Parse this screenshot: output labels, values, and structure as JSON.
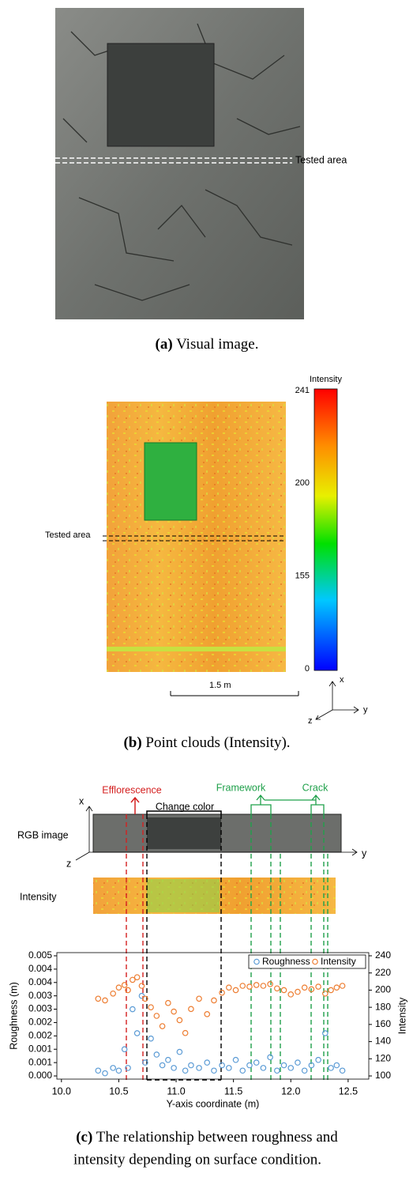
{
  "panel_a": {
    "annotation": "Tested area",
    "caption_label": "(a)",
    "caption": "Visual image."
  },
  "panel_b": {
    "annotation": "Tested area",
    "colorbar_title": "Intensity",
    "colorbar_ticks": [
      241,
      200,
      155,
      0
    ],
    "scale_bar": "1.5 m",
    "axes": [
      "x",
      "y",
      "z"
    ],
    "caption_label": "(b)",
    "caption": "Point clouds (Intensity)."
  },
  "panel_c": {
    "annotations": [
      "Efflorescence",
      "Change color",
      "Framework",
      "Crack"
    ],
    "axes": [
      "x",
      "y",
      "z"
    ],
    "rows": [
      "RGB image",
      "Intensity"
    ],
    "caption_label": "(c)",
    "caption": [
      "The relationship between roughness and",
      "intensity depending on surface condition."
    ]
  },
  "chart_data": {
    "type": "scatter",
    "xlabel": "Y-axis coordinate (m)",
    "ylabel": "Roughness (m)",
    "y2label": "Intensity",
    "xlim": [
      9.96,
      12.68
    ],
    "xticks": [
      {
        "value": 10,
        "label": "10.0"
      },
      10.5,
      {
        "value": 11,
        "label": "11.0"
      },
      11.5,
      {
        "value": 12,
        "label": "12.0"
      },
      12.5
    ],
    "ylim": [
      0,
      0.0045
    ],
    "yticks": [
      {
        "value": 0,
        "label": "0.000"
      },
      {
        "value": 0.0005,
        "label": "0.001"
      },
      {
        "value": 0.001,
        "label": "0.001"
      },
      {
        "value": 0.0015,
        "label": "0.002"
      },
      {
        "value": 0.002,
        "label": "0.002"
      },
      {
        "value": 0.0025,
        "label": "0.003"
      },
      {
        "value": 0.003,
        "label": "0.003"
      },
      {
        "value": 0.0035,
        "label": "0.004"
      },
      {
        "value": 0.004,
        "label": "0.004"
      },
      {
        "value": 0.0045,
        "label": "0.005"
      }
    ],
    "y2lim": [
      100,
      240
    ],
    "y2ticks": [
      100,
      120,
      140,
      160,
      180,
      200,
      220,
      240
    ],
    "legend": "top-right",
    "series": [
      {
        "name": "Roughness",
        "color": "#5b9bd5",
        "x": [
          10.32,
          10.38,
          10.45,
          10.5,
          10.55,
          10.58,
          10.62,
          10.66,
          10.7,
          10.73,
          10.78,
          10.83,
          10.88,
          10.93,
          10.98,
          11.03,
          11.08,
          11.13,
          11.2,
          11.27,
          11.33,
          11.4,
          11.46,
          11.52,
          11.58,
          11.64,
          11.7,
          11.76,
          11.82,
          11.88,
          11.94,
          12.0,
          12.06,
          12.12,
          12.18,
          12.24,
          12.3,
          12.35,
          12.4,
          12.45
        ],
        "values": [
          0.0002,
          0.0001,
          0.0003,
          0.0002,
          0.001,
          0.0003,
          0.0025,
          0.0016,
          0.003,
          0.0005,
          0.0014,
          0.0008,
          0.0004,
          0.0006,
          0.0003,
          0.0009,
          0.0002,
          0.0004,
          0.0003,
          0.0005,
          0.0002,
          0.0004,
          0.0003,
          0.0006,
          0.0002,
          0.0004,
          0.0005,
          0.0003,
          0.0007,
          0.0002,
          0.0004,
          0.0003,
          0.0005,
          0.0002,
          0.0004,
          0.0006,
          0.0016,
          0.0003,
          0.0004,
          0.0002
        ]
      },
      {
        "name": "Intensity",
        "color": "#ed7d31",
        "axis": "y2",
        "x": [
          10.32,
          10.38,
          10.45,
          10.5,
          10.55,
          10.58,
          10.62,
          10.66,
          10.7,
          10.73,
          10.78,
          10.83,
          10.88,
          10.93,
          10.98,
          11.03,
          11.08,
          11.13,
          11.2,
          11.27,
          11.33,
          11.4,
          11.46,
          11.52,
          11.58,
          11.64,
          11.7,
          11.76,
          11.82,
          11.88,
          11.94,
          12.0,
          12.06,
          12.12,
          12.18,
          12.24,
          12.3,
          12.35,
          12.4,
          12.45
        ],
        "values": [
          190,
          188,
          196,
          203,
          206,
          200,
          212,
          215,
          205,
          190,
          180,
          170,
          158,
          185,
          175,
          165,
          150,
          178,
          190,
          172,
          188,
          197,
          203,
          200,
          205,
          204,
          206,
          205,
          207,
          202,
          200,
          195,
          198,
          203,
          201,
          204,
          196,
          200,
          203,
          205
        ]
      }
    ]
  }
}
